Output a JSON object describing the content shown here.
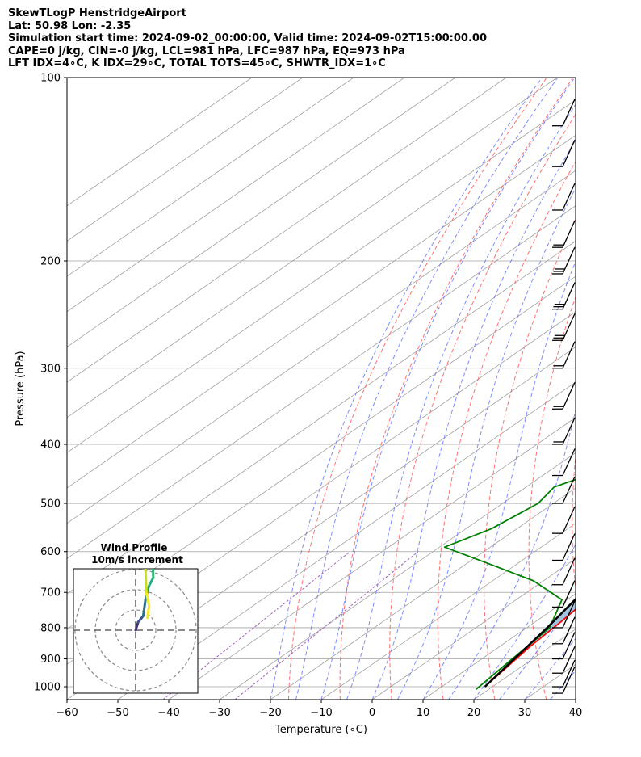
{
  "header": {
    "line1": "SkewTLogP HenstridgeAirport",
    "line2": "Lat: 50.98   Lon: -2.35",
    "line3": "Simulation start time: 2024-09-02_00:00:00, Valid time: 2024-09-02T15:00:00.00",
    "line4": "CAPE=0 j/kg, CIN=-0 j/kg, LCL=981 hPa, LFC=987 hPa, EQ=973 hPa",
    "line5": "LFT IDX=4∘C, K IDX=29∘C, TOTAL TOTS=45∘C, SHWTR_IDX=1∘C"
  },
  "chart_data": {
    "type": "line",
    "xlabel": "Temperature (∘C)",
    "ylabel": "Pressure (hPa)",
    "xlim": [
      -60,
      40
    ],
    "ylim": [
      1050,
      100
    ],
    "yscale": "log",
    "skew": true,
    "grid": true,
    "x_ticks": [
      -60,
      -50,
      -40,
      -30,
      -20,
      -10,
      0,
      10,
      20,
      30,
      40
    ],
    "y_ticks": [
      1000,
      900,
      800,
      700,
      600,
      500,
      400,
      300,
      200,
      100
    ],
    "colors": {
      "temperature": "#ff0000",
      "dewpoint": "#008000",
      "parcel": "#000000",
      "fill": "#a0c4e0",
      "dry_adiabat": "#ff6060",
      "moist_adiabat": "#6677ff",
      "mixing_ratio": "#a060c0",
      "isotherm": "#a0a0a0"
    },
    "series": [
      {
        "key": "temperature",
        "points": [
          [
            18.5,
            1000
          ],
          [
            17.3,
            930
          ],
          [
            16.0,
            860
          ],
          [
            15.0,
            780
          ],
          [
            13.5,
            700
          ],
          [
            12.0,
            620
          ],
          [
            9.5,
            530
          ],
          [
            6.0,
            460
          ],
          [
            2.0,
            400
          ],
          [
            -3.5,
            340
          ],
          [
            -8.0,
            290
          ],
          [
            -15.0,
            235
          ],
          [
            -22.0,
            210
          ],
          [
            -20.0,
            200
          ],
          [
            -14.0,
            180
          ],
          [
            -14.0,
            160
          ],
          [
            -17.0,
            140
          ],
          [
            -14.5,
            125
          ],
          [
            -16.0,
            110
          ],
          [
            -17.0,
            100
          ]
        ]
      },
      {
        "key": "dewpoint",
        "points": [
          [
            17.5,
            1010
          ],
          [
            16.0,
            900
          ],
          [
            14.5,
            800
          ],
          [
            9.0,
            720
          ],
          [
            -2.0,
            670
          ],
          [
            -15.0,
            630
          ],
          [
            -29.0,
            590
          ],
          [
            -25.0,
            550
          ],
          [
            -23.0,
            500
          ],
          [
            -24.5,
            470
          ],
          [
            -17.0,
            425
          ],
          [
            -10.5,
            370
          ],
          [
            -7.0,
            330
          ],
          [
            -7.5,
            300
          ],
          [
            -11.0,
            260
          ],
          [
            -17.5,
            230
          ],
          [
            -25.0,
            200
          ],
          [
            -28.0,
            185
          ],
          [
            -27.0,
            170
          ],
          [
            -29.0,
            150
          ],
          [
            -30.5,
            140
          ],
          [
            -26.0,
            120
          ],
          [
            -24.0,
            100
          ]
        ]
      },
      {
        "key": "parcel",
        "points": [
          [
            18.5,
            1000
          ],
          [
            14.0,
            800
          ],
          [
            9.2,
            650
          ],
          [
            4.1,
            550
          ],
          [
            -6.2,
            420
          ],
          [
            -19.0,
            320
          ],
          [
            -35.6,
            240
          ],
          [
            -52.0,
            190
          ],
          [
            -66.0,
            150
          ],
          [
            -81.0,
            120
          ],
          [
            -93.0,
            100
          ]
        ]
      }
    ],
    "wind_barbs": [
      {
        "p": 1025,
        "barbs": 1,
        "flag": false
      },
      {
        "p": 1000,
        "barbs": 1,
        "flag": false
      },
      {
        "p": 950,
        "barbs": 1,
        "flag": false
      },
      {
        "p": 900,
        "barbs": 1,
        "flag": false
      },
      {
        "p": 850,
        "barbs": 1,
        "flag": false
      },
      {
        "p": 800,
        "barbs": 1,
        "flag": false
      },
      {
        "p": 740,
        "barbs": 1,
        "flag": false
      },
      {
        "p": 680,
        "barbs": 1,
        "flag": false
      },
      {
        "p": 620,
        "barbs": 1,
        "flag": false
      },
      {
        "p": 560,
        "barbs": 1,
        "flag": false
      },
      {
        "p": 500,
        "barbs": 1,
        "flag": false
      },
      {
        "p": 450,
        "barbs": 1,
        "flag": false
      },
      {
        "p": 400,
        "barbs": 2,
        "flag": false
      },
      {
        "p": 350,
        "barbs": 2,
        "flag": false
      },
      {
        "p": 300,
        "barbs": 2,
        "flag": false
      },
      {
        "p": 270,
        "barbs": 3,
        "flag": false
      },
      {
        "p": 240,
        "barbs": 3,
        "flag": false
      },
      {
        "p": 210,
        "barbs": 3,
        "flag": false
      },
      {
        "p": 190,
        "barbs": 2,
        "flag": false
      },
      {
        "p": 165,
        "barbs": 1,
        "flag": false
      },
      {
        "p": 140,
        "barbs": 1,
        "flag": false
      },
      {
        "p": 120,
        "barbs": 1,
        "flag": false
      }
    ],
    "inset": {
      "title_line1": "Wind Profile",
      "title_line2": "10m/s increment",
      "rings": 3,
      "hodograph": [
        {
          "u": 0.0,
          "v": 0.0,
          "c": "#440154"
        },
        {
          "u": 0.3,
          "v": 0.4,
          "c": "#46307e"
        },
        {
          "u": 0.9,
          "v": 0.7,
          "c": "#3b528b"
        },
        {
          "u": 1.2,
          "v": 1.6,
          "c": "#2c728e"
        },
        {
          "u": 1.6,
          "v": 2.2,
          "c": "#21918c"
        },
        {
          "u": 2.1,
          "v": 2.6,
          "c": "#28ae80"
        },
        {
          "u": 2.0,
          "v": 3.6,
          "c": "#35b779"
        },
        {
          "u": 1.5,
          "v": 4.2,
          "c": "#5ec962"
        },
        {
          "u": 1.0,
          "v": 4.6,
          "c": "#addc30"
        },
        {
          "u": 1.3,
          "v": 1.8,
          "c": "#c8e020"
        },
        {
          "u": 1.6,
          "v": 1.2,
          "c": "#fde725"
        },
        {
          "u": 1.4,
          "v": 0.6,
          "c": "#fde725"
        }
      ]
    }
  }
}
